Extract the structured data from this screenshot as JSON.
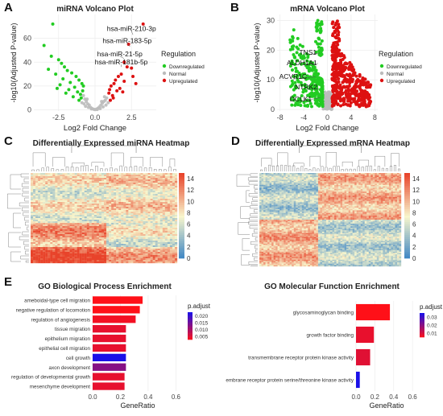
{
  "panel_labels": [
    "A",
    "B",
    "C",
    "D",
    "E"
  ],
  "colors": {
    "down": "#22cc22",
    "normal": "#bbbbbb",
    "up": "#dd1111",
    "heat_low": "#3b84c4",
    "heat_mid": "#f8f6cc",
    "heat_high": "#e8432a",
    "padj_low": "#1a10e8",
    "padj_high": "#ff1018"
  },
  "chart_data": [
    {
      "id": "A",
      "type": "scatter",
      "title": "miRNA Volcano Plot",
      "xlabel": "Log2 Fold Change",
      "ylabel": "-log10(Adjusted P-value)",
      "xlim": [
        -4.2,
        4.2
      ],
      "ylim": [
        -1,
        80
      ],
      "xticks": [
        -2.5,
        0.0,
        2.5
      ],
      "xtick_labels": [
        "-2.5",
        "0.0",
        "2.5"
      ],
      "yticks": [
        0,
        20,
        40,
        60
      ],
      "ytick_labels": [
        "0",
        "20",
        "40",
        "60"
      ],
      "legend_title": "Regulation",
      "legend": [
        "Downregulated",
        "Normal",
        "Upregulated"
      ],
      "annotations": [
        "hsa-miR-210-3p",
        "hsa-miR-183-5p",
        "hsa-miR-21-5p",
        "hsa-miR-181b-5p"
      ],
      "points_down": [
        [
          -2.9,
          72
        ],
        [
          -3.5,
          54
        ],
        [
          -3.0,
          45
        ],
        [
          -2.5,
          42
        ],
        [
          -2.3,
          39
        ],
        [
          -2.1,
          36
        ],
        [
          -1.9,
          33
        ],
        [
          -1.6,
          31
        ],
        [
          -1.3,
          28
        ],
        [
          -1.1,
          25
        ],
        [
          -0.9,
          22
        ],
        [
          -0.8,
          20
        ],
        [
          -2.7,
          30
        ],
        [
          -2.2,
          26
        ],
        [
          -1.7,
          23
        ],
        [
          -1.4,
          19
        ],
        [
          -2.4,
          21
        ],
        [
          -1.8,
          17
        ],
        [
          -1.2,
          15
        ],
        [
          -1.0,
          13
        ],
        [
          -2.0,
          14
        ],
        [
          -1.5,
          11
        ],
        [
          -0.95,
          10
        ],
        [
          -1.1,
          8
        ],
        [
          -2.6,
          18
        ],
        [
          -3.2,
          34
        ],
        [
          -0.85,
          16
        ]
      ],
      "points_normal": [
        [
          -0.8,
          12
        ],
        [
          -0.7,
          9
        ],
        [
          -0.6,
          7
        ],
        [
          -0.5,
          5
        ],
        [
          -0.4,
          4
        ],
        [
          -0.3,
          2
        ],
        [
          -0.2,
          1
        ],
        [
          -0.1,
          0.5
        ],
        [
          0.0,
          0.2
        ],
        [
          0.1,
          0.6
        ],
        [
          0.2,
          1.4
        ],
        [
          0.3,
          2.5
        ],
        [
          0.4,
          4
        ],
        [
          0.5,
          5.5
        ],
        [
          0.6,
          7
        ],
        [
          0.7,
          8
        ],
        [
          0.8,
          10
        ],
        [
          -0.65,
          3
        ],
        [
          -0.45,
          2
        ],
        [
          0.35,
          1
        ],
        [
          0.55,
          2.5
        ],
        [
          0.75,
          4
        ],
        [
          -0.75,
          5
        ],
        [
          0.15,
          0.3
        ],
        [
          -0.25,
          0.8
        ],
        [
          0.9,
          6
        ],
        [
          -0.9,
          6
        ],
        [
          0.65,
          11
        ],
        [
          0.45,
          7
        ],
        [
          -0.55,
          9
        ]
      ],
      "points_up": [
        [
          3.3,
          72
        ],
        [
          2.3,
          55
        ],
        [
          2.0,
          40
        ],
        [
          2.2,
          36
        ],
        [
          1.8,
          30
        ],
        [
          1.6,
          28
        ],
        [
          1.4,
          25
        ],
        [
          1.3,
          22
        ],
        [
          1.1,
          20
        ],
        [
          2.5,
          35
        ],
        [
          1.0,
          17
        ],
        [
          0.95,
          14
        ],
        [
          2.0,
          24
        ],
        [
          1.7,
          18
        ],
        [
          1.2,
          12
        ],
        [
          2.6,
          28
        ],
        [
          1.9,
          15
        ],
        [
          1.5,
          16
        ],
        [
          2.8,
          22
        ],
        [
          1.25,
          10
        ],
        [
          1.05,
          8
        ]
      ],
      "label_points": [
        [
          2.6,
          63
        ],
        [
          2.4,
          53
        ],
        [
          2.0,
          43
        ],
        [
          1.8,
          36
        ]
      ],
      "label_pos": [
        [
          2.5,
          66
        ],
        [
          2.2,
          56
        ],
        [
          1.7,
          45
        ],
        [
          1.8,
          38
        ]
      ]
    },
    {
      "id": "B",
      "type": "scatter",
      "title": "mRNA Volcano Plot",
      "xlabel": "Log2 Fold Change",
      "ylabel": "-log10(Adjusted P-value)",
      "xlim": [
        -8.5,
        8.5
      ],
      "ylim": [
        -0.5,
        32
      ],
      "xticks": [
        -8,
        -4,
        0,
        4,
        8
      ],
      "xtick_labels": [
        "-8",
        "-4",
        "0",
        "4",
        "8"
      ],
      "yticks": [
        0,
        10,
        20,
        30
      ],
      "ytick_labels": [
        "0",
        "10",
        "20",
        "30"
      ],
      "legend_title": "Regulation",
      "legend": [
        "Downregulated",
        "Normal",
        "Upregulated"
      ],
      "annotations": [
        "TNS1",
        "ALDH1A1",
        "ACVR1C",
        "NTRK2",
        "DCLK1"
      ],
      "label_points": [
        [
          -1.3,
          19
        ],
        [
          -1.6,
          15.5
        ],
        [
          -2.0,
          11
        ],
        [
          -1.4,
          7
        ],
        [
          -1.2,
          4
        ]
      ],
      "label_pos": [
        [
          -3.3,
          18.5
        ],
        [
          -4.3,
          15
        ],
        [
          -5.8,
          10.3
        ],
        [
          -3.6,
          6.8
        ],
        [
          -4.5,
          2.8
        ]
      ]
    },
    {
      "id": "C",
      "type": "heatmap",
      "title": "Differentially Expressed miRNA Heatmap",
      "colorbar_ticks": [
        "14",
        "12",
        "10",
        "8",
        "6",
        "4",
        "2",
        "0"
      ],
      "colorbar_range": [
        0,
        15
      ]
    },
    {
      "id": "D",
      "type": "heatmap",
      "title": "Differentially Expressed mRNA Heatmap",
      "colorbar_ticks": [
        "14",
        "12",
        "10",
        "8",
        "6",
        "4",
        "2",
        "0"
      ],
      "colorbar_range": [
        0,
        15
      ]
    },
    {
      "id": "E1",
      "type": "bar",
      "title": "GO Biological Process Enrichment",
      "xlabel": "GeneRatio",
      "xlim": [
        0,
        0.65
      ],
      "xticks": [
        0.0,
        0.2,
        0.4,
        0.6
      ],
      "xtick_labels": [
        "0.0",
        "0.2",
        "0.4",
        "0.6"
      ],
      "legend_title": "p.adjust",
      "legend_ticks": [
        "0.020",
        "0.015",
        "0.010",
        "0.005"
      ],
      "categories": [
        "ameboidal-type cell migration",
        "negative regulation of locomotion",
        "regulation of angiogenesis",
        "tissue migration",
        "epithelium migration",
        "epithelial cell migration",
        "cell growth",
        "axon development",
        "regulation of developmental growth",
        "mesenchyme development"
      ],
      "values": [
        0.36,
        0.34,
        0.31,
        0.24,
        0.24,
        0.24,
        0.24,
        0.24,
        0.23,
        0.23
      ],
      "p_adjust": [
        0.003,
        0.003,
        0.004,
        0.005,
        0.005,
        0.005,
        0.022,
        0.013,
        0.005,
        0.005
      ]
    },
    {
      "id": "E2",
      "type": "bar",
      "title": "GO Molecular Function Enrichment",
      "xlabel": "GeneRatio",
      "xlim": [
        0,
        0.65
      ],
      "xticks": [
        0.0,
        0.2,
        0.4,
        0.6
      ],
      "xtick_labels": [
        "0.0",
        "0.2",
        "0.4",
        "0.6"
      ],
      "legend_title": "p.adjust",
      "legend_ticks": [
        "0.03",
        "0.02",
        "0.01"
      ],
      "categories": [
        "glycosaminoglycan binding",
        "growth factor binding",
        "transmembrane receptor protein kinase activity",
        "transmembrane receptor protein serine/threonine kinase activity"
      ],
      "values": [
        0.36,
        0.19,
        0.15,
        0.04
      ],
      "p_adjust": [
        0.005,
        0.008,
        0.009,
        0.035
      ]
    }
  ]
}
